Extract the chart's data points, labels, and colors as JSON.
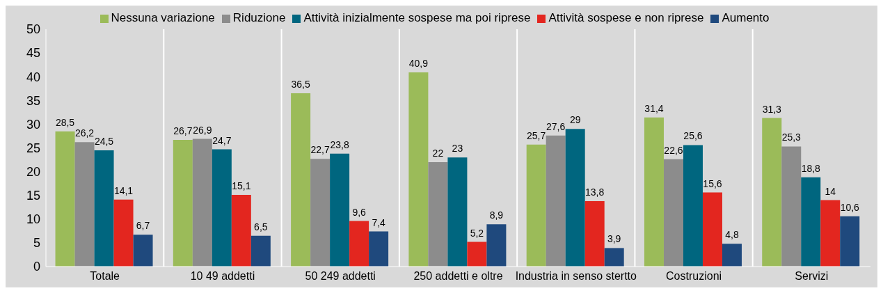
{
  "chart_data": {
    "type": "bar",
    "categories": [
      "Totale",
      "10 49 addetti",
      "50 249 addetti",
      "250 addetti e oltre",
      "Industria in senso stertto",
      "Costruzioni",
      "Servizi"
    ],
    "series": [
      {
        "name": "Nessuna variazione",
        "color": "#9bbb59",
        "values": [
          28.5,
          26.7,
          36.5,
          40.9,
          25.7,
          31.4,
          31.3
        ],
        "value_labels": [
          "28,5",
          "26,7",
          "36,5",
          "40,9",
          "25,7",
          "31,4",
          "31,3"
        ]
      },
      {
        "name": "Riduzione",
        "color": "#8c8c8c",
        "values": [
          26.2,
          26.9,
          22.7,
          22,
          27.6,
          22.6,
          25.3
        ],
        "value_labels": [
          "26,2",
          "26,9",
          "22,7",
          "22",
          "27,6",
          "22,6",
          "25,3"
        ]
      },
      {
        "name": "Attività inizialmente sospese ma poi riprese",
        "color": "#00667f",
        "values": [
          24.5,
          24.7,
          23.8,
          23,
          29,
          25.6,
          18.8
        ],
        "value_labels": [
          "24,5",
          "24,7",
          "23,8",
          "23",
          "29",
          "25,6",
          "18,8"
        ]
      },
      {
        "name": "Attività sospese e non riprese",
        "color": "#e3261f",
        "values": [
          14.1,
          15.1,
          9.6,
          5.2,
          13.8,
          15.6,
          14
        ],
        "value_labels": [
          "14,1",
          "15,1",
          "9,6",
          "5,2",
          "13,8",
          "15,6",
          "14"
        ]
      },
      {
        "name": "Aumento",
        "color": "#1f497d",
        "values": [
          6.7,
          6.5,
          7.4,
          8.9,
          3.9,
          4.8,
          10.6
        ],
        "value_labels": [
          "6,7",
          "6,5",
          "7,4",
          "8,9",
          "3,9",
          "4,8",
          "10,6"
        ]
      }
    ],
    "ylim": [
      0,
      50
    ],
    "yticks": [
      0,
      5,
      10,
      15,
      20,
      25,
      30,
      35,
      40,
      45,
      50
    ],
    "grid": "x",
    "legend": "top"
  }
}
